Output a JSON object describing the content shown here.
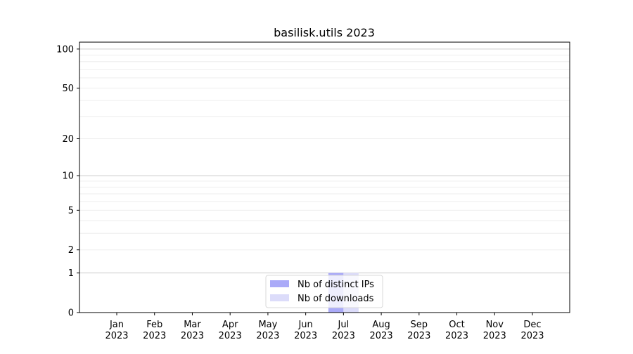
{
  "chart_data": {
    "type": "bar",
    "title": "basilisk.utils 2023",
    "xlabel": "",
    "ylabel": "",
    "categories": [
      "Jan\n2023",
      "Feb\n2023",
      "Mar\n2023",
      "Apr\n2023",
      "May\n2023",
      "Jun\n2023",
      "Jul\n2023",
      "Aug\n2023",
      "Sep\n2023",
      "Oct\n2023",
      "Nov\n2023",
      "Dec\n2023"
    ],
    "series": [
      {
        "name": "Nb of distinct IPs",
        "color": "#aaaaf8",
        "values": [
          0,
          0,
          0,
          0,
          0,
          0,
          1,
          0,
          0,
          0,
          0,
          0
        ]
      },
      {
        "name": "Nb of downloads",
        "color": "#dcdcfa",
        "values": [
          0,
          0,
          0,
          0,
          0,
          0,
          1,
          0,
          0,
          0,
          0,
          0
        ]
      }
    ],
    "yscale": "symlog (log10(1+y))",
    "yticks": [
      0,
      1,
      2,
      5,
      10,
      20,
      50,
      100
    ],
    "ylim": [
      0,
      113
    ],
    "grid": true,
    "legend": "lower center"
  }
}
